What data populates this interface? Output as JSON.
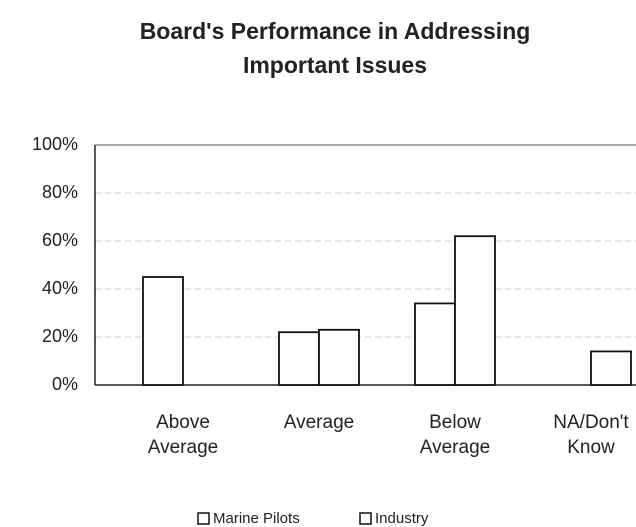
{
  "chart_data": {
    "type": "bar",
    "title": "Board's Performance in Addressing Important Issues",
    "categories": [
      "Above Average",
      "Average",
      "Below Average",
      "NA/Don't Know"
    ],
    "series": [
      {
        "name": "Marine Pilots",
        "color": "#ffffff",
        "values": [
          45,
          22,
          34,
          0
        ]
      },
      {
        "name": "Industry",
        "color": "#ffffff",
        "values": [
          0,
          23,
          62,
          14
        ]
      }
    ],
    "ylim": [
      0,
      100
    ],
    "yticks": [
      {
        "value": 0,
        "label": "0%"
      },
      {
        "value": 20,
        "label": "20%"
      },
      {
        "value": 40,
        "label": "40%"
      },
      {
        "value": 60,
        "label": "60%"
      },
      {
        "value": 80,
        "label": "80%"
      },
      {
        "value": 100,
        "label": "100%"
      }
    ],
    "grid": true,
    "legend": "bottom"
  }
}
